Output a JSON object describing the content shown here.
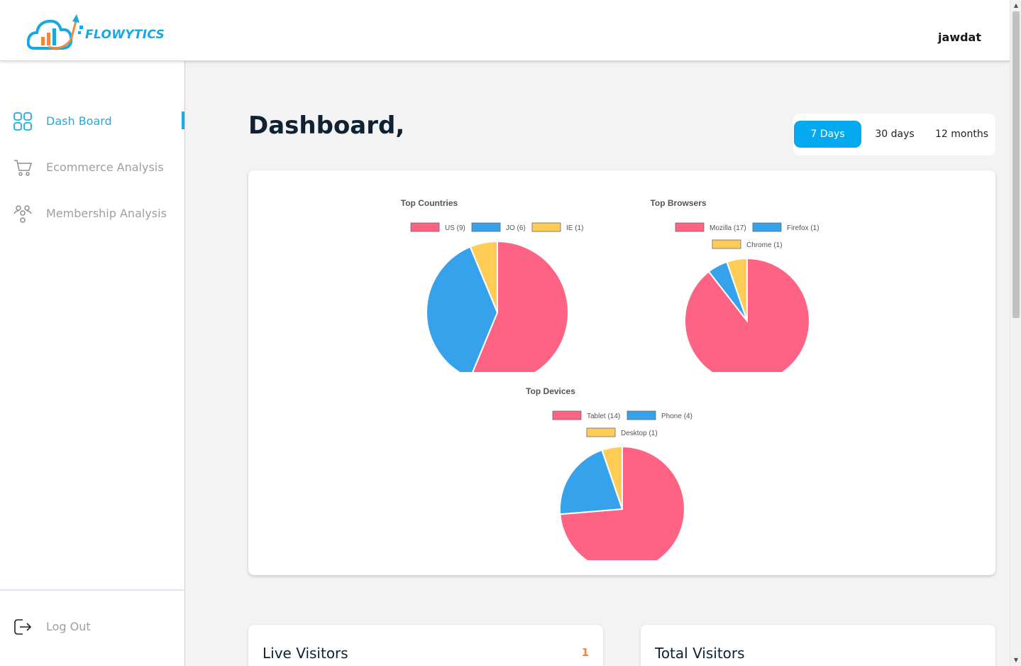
{
  "app": {
    "brand": "FLOWYTICS",
    "username": "jawdat"
  },
  "sidebar": {
    "items": [
      {
        "label": "Dash Board",
        "icon": "grid-icon",
        "active": true
      },
      {
        "label": "Ecommerce Analysis",
        "icon": "cart-icon",
        "active": false
      },
      {
        "label": "Membership Analysis",
        "icon": "users-icon",
        "active": false
      }
    ],
    "logout_label": "Log Out"
  },
  "main": {
    "title": "Dashboard,",
    "ranges": [
      "7 Days",
      "30 days",
      "12 months"
    ],
    "selected_range": "7 Days"
  },
  "colors": {
    "pink": "#ff6384",
    "blue": "#36a2eb",
    "yellow": "#ffcd56",
    "accent": "#05a9f0",
    "stat_value": "#f4853d"
  },
  "chart_data": [
    {
      "type": "pie",
      "title": "Top Countries",
      "legend": [
        "US (9)",
        "JO (6)",
        "IE (1)"
      ],
      "categories": [
        "US",
        "JO",
        "IE"
      ],
      "values": [
        9,
        6,
        1
      ]
    },
    {
      "type": "pie",
      "title": "Top Browsers",
      "legend": [
        "Mozilla (17)",
        "Firefox (1)",
        "Chrome (1)"
      ],
      "categories": [
        "Mozilla",
        "Firefox",
        "Chrome"
      ],
      "values": [
        17,
        1,
        1
      ]
    },
    {
      "type": "pie",
      "title": "Top Devices",
      "legend": [
        "Tablet (14)",
        "Phone (4)",
        "Desktop (1)"
      ],
      "categories": [
        "Tablet",
        "Phone",
        "Desktop"
      ],
      "values": [
        14,
        4,
        1
      ]
    }
  ],
  "stats": [
    {
      "title": "Live Visitors",
      "value": "1"
    },
    {
      "title": "Total Visitors",
      "value": ""
    }
  ]
}
